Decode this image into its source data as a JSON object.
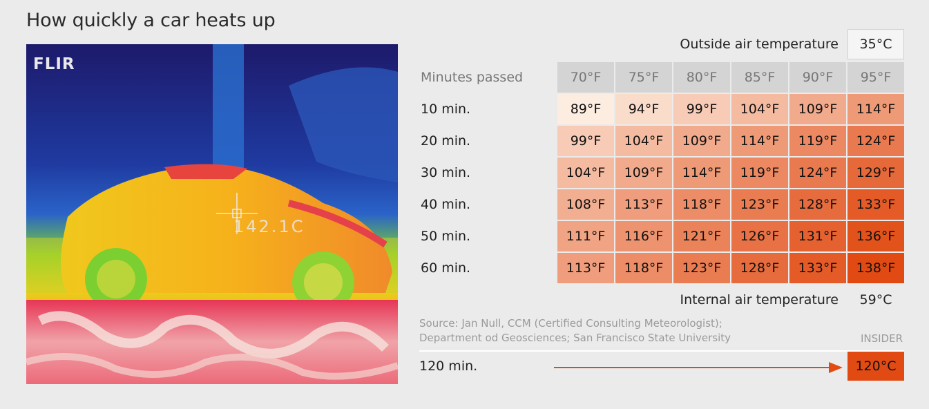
{
  "title": "How quickly a car heats up",
  "photo": {
    "logo": "FLIR",
    "reading": "142.1C"
  },
  "outside_label": "Outside air temperature",
  "outside_value": "35°C",
  "internal_label": "Internal air temperature",
  "internal_value": "59°C",
  "source_line1": "Source: Jan Null, CCM (Certified Consulting Meteorologist);",
  "source_line2": "Department od Geosciences; San Francisco State University",
  "brand": "INSIDER",
  "row120_label": "120 min.",
  "row120_value": "120°C",
  "row120_color": "#e14b13",
  "chart_data": {
    "type": "table",
    "row_header": "Minutes passed",
    "columns": [
      "70°F",
      "75°F",
      "80°F",
      "85°F",
      "90°F",
      "95°F"
    ],
    "rows": [
      {
        "label": "10 min.",
        "cells": [
          "89°F",
          "94°F",
          "99°F",
          "104°F",
          "109°F",
          "114°F"
        ],
        "values": [
          89,
          94,
          99,
          104,
          109,
          114
        ]
      },
      {
        "label": "20 min.",
        "cells": [
          "99°F",
          "104°F",
          "109°F",
          "114°F",
          "119°F",
          "124°F"
        ],
        "values": [
          99,
          104,
          109,
          114,
          119,
          124
        ]
      },
      {
        "label": "30 min.",
        "cells": [
          "104°F",
          "109°F",
          "114°F",
          "119°F",
          "124°F",
          "129°F"
        ],
        "values": [
          104,
          109,
          114,
          119,
          124,
          129
        ]
      },
      {
        "label": "40 min.",
        "cells": [
          "108°F",
          "113°F",
          "118°F",
          "123°F",
          "128°F",
          "133°F"
        ],
        "values": [
          108,
          113,
          118,
          123,
          128,
          133
        ]
      },
      {
        "label": "50 min.",
        "cells": [
          "111°F",
          "116°F",
          "121°F",
          "126°F",
          "131°F",
          "136°F"
        ],
        "values": [
          111,
          116,
          121,
          126,
          131,
          136
        ]
      },
      {
        "label": "60 min.",
        "cells": [
          "113°F",
          "118°F",
          "123°F",
          "128°F",
          "133°F",
          "138°F"
        ],
        "values": [
          113,
          118,
          123,
          128,
          133,
          138
        ]
      }
    ],
    "color_scale": {
      "low_value": 89,
      "high_value": 138,
      "low_color": "#fdece0",
      "high_color": "#e14b13"
    }
  }
}
